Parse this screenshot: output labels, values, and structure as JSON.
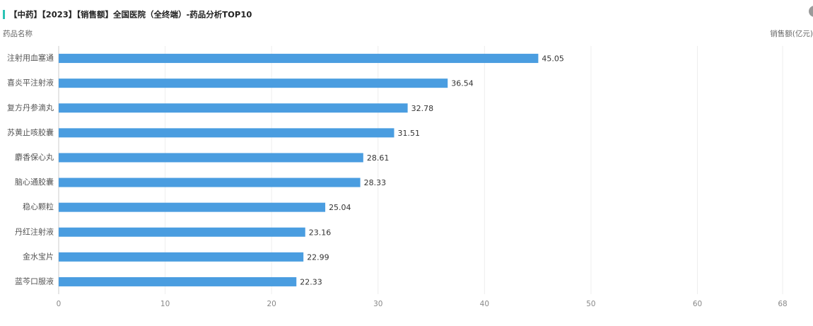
{
  "chart_data": {
    "type": "bar",
    "orientation": "horizontal",
    "title": "【中药】【2023】【销售额】全国医院（全终端）-药品分析TOP10",
    "y_label": "药品名称",
    "x_label": "销售额(亿元)",
    "categories": [
      "注射用血塞通",
      "喜炎平注射液",
      "复方丹参滴丸",
      "苏黄止咳胶囊",
      "麝香保心丸",
      "脑心通胶囊",
      "稳心颗粒",
      "丹红注射液",
      "金水宝片",
      "蓝芩口服液"
    ],
    "values": [
      45.05,
      36.54,
      32.78,
      31.51,
      28.61,
      28.33,
      25.04,
      23.16,
      22.99,
      22.33
    ],
    "color": "#4a9de0",
    "xlim": [
      0,
      68
    ],
    "xticks": [
      0,
      10,
      20,
      30,
      40,
      50,
      60,
      68
    ],
    "grid": true
  }
}
